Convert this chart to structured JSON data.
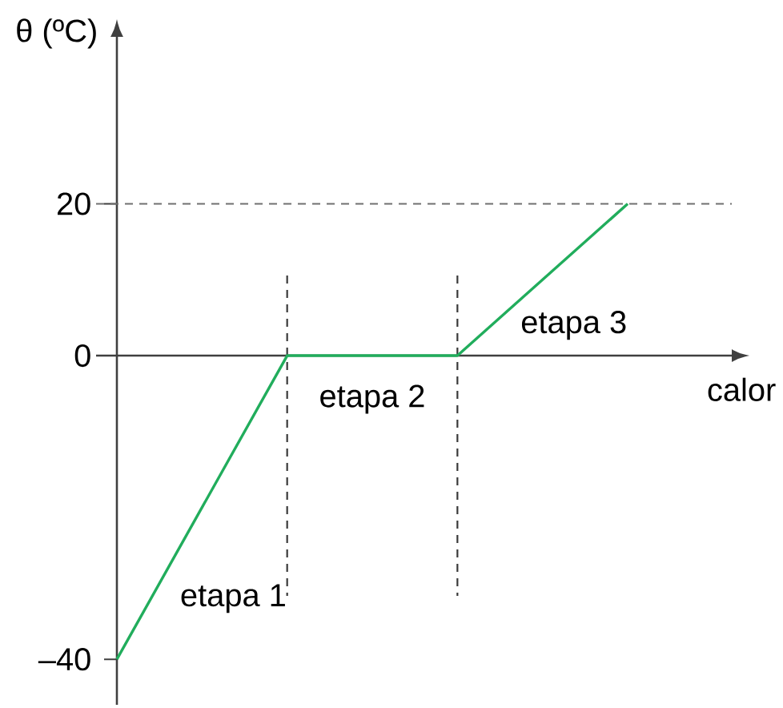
{
  "chart_data": {
    "type": "line",
    "xlabel": "calor",
    "ylabel": "θ (ºC)",
    "categories": [
      null,
      null,
      null,
      null
    ],
    "values": [
      -40,
      0,
      0,
      20
    ],
    "color": "#21ad5c",
    "ylim": [
      -46,
      42
    ],
    "yticks": [
      {
        "value": -40,
        "label": "–40"
      },
      0,
      20
    ],
    "ref_lines": [
      {
        "axis": "y",
        "value": 20,
        "line_style": "dashed",
        "color": "#707070"
      }
    ],
    "annotations": [
      "etapa 1",
      "etapa 2",
      "etapa 3"
    ],
    "marker": "none",
    "line_style": "solid"
  }
}
